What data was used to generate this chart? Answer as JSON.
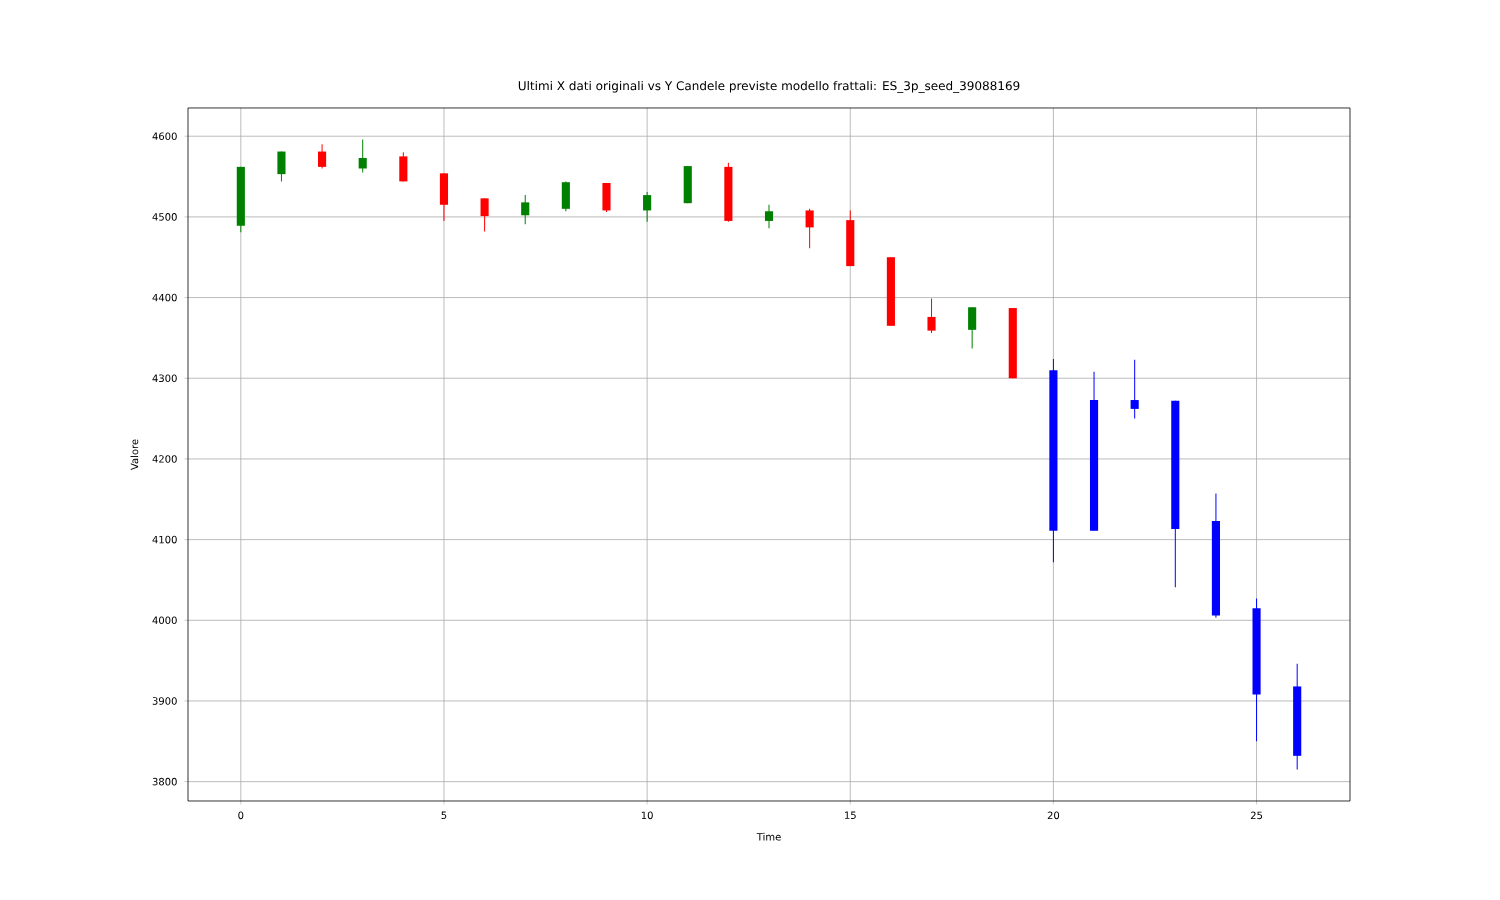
{
  "chart_data": {
    "type": "candlestick",
    "title": "Ultimi X dati originali vs Y Candele previste modello frattali: ES_3p_seed_39088169",
    "xlabel": "Time",
    "ylabel": "Valore",
    "x": [
      0,
      1,
      2,
      3,
      4,
      5,
      6,
      7,
      8,
      9,
      10,
      11,
      12,
      13,
      14,
      15,
      16,
      17,
      18,
      19,
      20,
      21,
      22,
      23,
      24,
      25,
      26
    ],
    "ohlc": [
      [
        4489,
        4562,
        4481,
        4562
      ],
      [
        4553,
        4581,
        4544,
        4581
      ],
      [
        4581,
        4590,
        4560,
        4562
      ],
      [
        4560,
        4596,
        4555,
        4573
      ],
      [
        4575,
        4580,
        4544,
        4544
      ],
      [
        4554,
        4554,
        4495,
        4515
      ],
      [
        4523,
        4523,
        4482,
        4501
      ],
      [
        4502,
        4527,
        4491,
        4518
      ],
      [
        4510,
        4544,
        4507,
        4543
      ],
      [
        4542,
        4542,
        4506,
        4508
      ],
      [
        4508,
        4531,
        4494,
        4527
      ],
      [
        4517,
        4563,
        4517,
        4563
      ],
      [
        4562,
        4567,
        4494,
        4495
      ],
      [
        4495,
        4515,
        4486,
        4507
      ],
      [
        4508,
        4510,
        4461,
        4487
      ],
      [
        4496,
        4508,
        4439,
        4439
      ],
      [
        4450,
        4450,
        4365,
        4365
      ],
      [
        4376,
        4399,
        4356,
        4359
      ],
      [
        4360,
        4388,
        4337,
        4388
      ],
      [
        4387,
        4387,
        4300,
        4300
      ],
      [
        4310,
        4324,
        4072,
        4111
      ],
      [
        4273,
        4308,
        4111,
        4111
      ],
      [
        4273,
        4323,
        4250,
        4262
      ],
      [
        4272,
        4272,
        4041,
        4113
      ],
      [
        4123,
        4157,
        4003,
        4006
      ],
      [
        4015,
        4027,
        3850,
        3908
      ],
      [
        3918,
        3946,
        3815,
        3832
      ]
    ],
    "colors": [
      "#008000",
      "#008000",
      "#ff0000",
      "#008000",
      "#ff0000",
      "#ff0000",
      "#ff0000",
      "#008000",
      "#008000",
      "#ff0000",
      "#008000",
      "#008000",
      "#ff0000",
      "#008000",
      "#ff0000",
      "#ff0000",
      "#ff0000",
      "#ff0000",
      "#008000",
      "#ff0000",
      "#0000ff",
      "#0000ff",
      "#0000ff",
      "#0000ff",
      "#0000ff",
      "#0000ff",
      "#0000ff"
    ],
    "xlim": [
      -1.3,
      27.3
    ],
    "ylim": [
      3776,
      4635
    ],
    "xticks": [
      0,
      5,
      10,
      15,
      20,
      25
    ],
    "yticks": [
      3800,
      3900,
      4000,
      4100,
      4200,
      4300,
      4400,
      4500,
      4600
    ],
    "grid": true
  }
}
